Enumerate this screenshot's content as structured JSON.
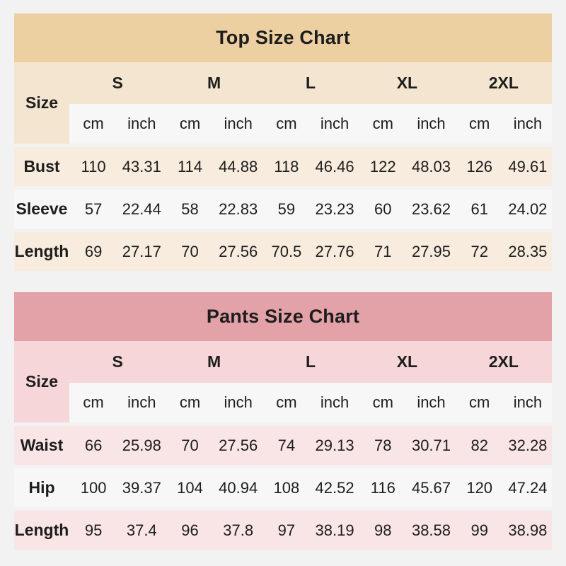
{
  "page_bg": "#f2f2f2",
  "chart_data": [
    {
      "type": "table",
      "title": "Top Size Chart",
      "corner_label": "Size",
      "size_headers": [
        "S",
        "M",
        "L",
        "XL",
        "2XL"
      ],
      "units": [
        "cm",
        "inch"
      ],
      "rows": [
        {
          "label": "Bust",
          "values": [
            110,
            43.31,
            114,
            44.88,
            118,
            46.46,
            122,
            48.03,
            126,
            49.61
          ]
        },
        {
          "label": "Sleeve",
          "values": [
            57,
            22.44,
            58,
            22.83,
            59,
            23.23,
            60,
            23.62,
            61,
            24.02
          ]
        },
        {
          "label": "Length",
          "values": [
            69,
            27.17,
            70,
            27.56,
            70.5,
            27.76,
            71,
            27.95,
            72,
            28.35
          ]
        }
      ],
      "colors": {
        "title_bg": "#edd0a2",
        "header_bg": "#f4e5d0",
        "stripe_bg": "#f7ecdd",
        "plain_bg": "#f7f7f7"
      }
    },
    {
      "type": "table",
      "title": "Pants Size Chart",
      "corner_label": "Size",
      "size_headers": [
        "S",
        "M",
        "L",
        "XL",
        "2XL"
      ],
      "units": [
        "cm",
        "inch"
      ],
      "rows": [
        {
          "label": "Waist",
          "values": [
            66,
            25.98,
            70,
            27.56,
            74,
            29.13,
            78,
            30.71,
            82,
            32.28
          ]
        },
        {
          "label": "Hip",
          "values": [
            100,
            39.37,
            104,
            40.94,
            108,
            42.52,
            116,
            45.67,
            120,
            47.24
          ]
        },
        {
          "label": "Length",
          "values": [
            95,
            37.4,
            96,
            37.8,
            97,
            38.19,
            98,
            38.58,
            99,
            38.98
          ]
        }
      ],
      "colors": {
        "title_bg": "#e3a1a8",
        "header_bg": "#f6d6d8",
        "stripe_bg": "#f9e5e5",
        "plain_bg": "#f7f7f7"
      }
    }
  ]
}
